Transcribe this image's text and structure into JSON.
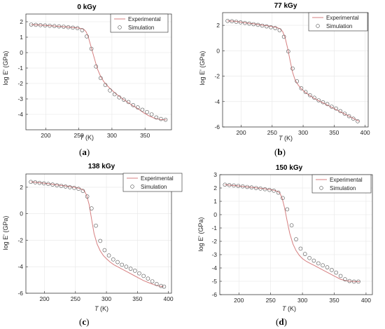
{
  "colors": {
    "experimental": "#d67f80",
    "simulation": "#555555",
    "grid": "#e6e6e6",
    "axis": "#262626"
  },
  "chart_data": [
    {
      "type": "line",
      "title": "0 kGy",
      "caption": {
        "open": "(",
        "letter": "a",
        "close": ")"
      },
      "xlabel": {
        "var": "T",
        "unit": " (K)"
      },
      "ylabel": "log E' (GPa)",
      "xlim": [
        170,
        390
      ],
      "ylim": [
        -5,
        2.5
      ],
      "xticks": [
        200,
        250,
        300,
        350
      ],
      "yticks": [
        -4,
        -3,
        -2,
        -1,
        0,
        1,
        2
      ],
      "grid": true,
      "legend": {
        "position": "top-right",
        "entries": [
          "Experimental",
          "Simulation"
        ]
      },
      "series": [
        {
          "name": "Experimental",
          "style": "line",
          "x": [
            178,
            190,
            200,
            210,
            220,
            230,
            240,
            248,
            254,
            258,
            261,
            264,
            267,
            270,
            274,
            278,
            283,
            288,
            293,
            298,
            303,
            310,
            318,
            325,
            332,
            340,
            348,
            356,
            364,
            372,
            378,
            382
          ],
          "y": [
            1.82,
            1.79,
            1.76,
            1.73,
            1.7,
            1.67,
            1.63,
            1.6,
            1.56,
            1.49,
            1.35,
            1.05,
            0.6,
            0.15,
            -0.45,
            -1.05,
            -1.55,
            -1.9,
            -2.15,
            -2.35,
            -2.55,
            -2.8,
            -3.05,
            -3.25,
            -3.45,
            -3.65,
            -3.9,
            -4.1,
            -4.25,
            -4.33,
            -4.35,
            -4.35
          ]
        },
        {
          "name": "Simulation",
          "style": "markers",
          "x": [
            178,
            185,
            192,
            199,
            206,
            213,
            220,
            227,
            234,
            241,
            248,
            255,
            262,
            269,
            276,
            283,
            290,
            297,
            304,
            311,
            318,
            325,
            332,
            339,
            346,
            353,
            360,
            367,
            374,
            381
          ],
          "y": [
            1.82,
            1.8,
            1.78,
            1.76,
            1.74,
            1.72,
            1.7,
            1.68,
            1.65,
            1.62,
            1.58,
            1.45,
            1.05,
            0.25,
            -0.9,
            -1.65,
            -2.1,
            -2.45,
            -2.7,
            -2.9,
            -3.05,
            -3.2,
            -3.4,
            -3.55,
            -3.7,
            -3.85,
            -4.0,
            -4.2,
            -4.3,
            -4.35
          ]
        }
      ]
    },
    {
      "type": "line",
      "title": "77 kGy",
      "caption": {
        "open": "(",
        "letter": "b",
        "close": ")"
      },
      "xlabel": {
        "var": "T",
        "unit": " (K)"
      },
      "ylabel": "log E' (GPa)",
      "xlim": [
        170,
        405
      ],
      "ylim": [
        -6,
        3
      ],
      "xticks": [
        200,
        250,
        300,
        350,
        400
      ],
      "yticks": [
        -6,
        -4,
        -2,
        0,
        2
      ],
      "grid": true,
      "legend": {
        "position": "top-right",
        "entries": [
          "Experimental",
          "Simulation"
        ]
      },
      "series": [
        {
          "name": "Experimental",
          "style": "line",
          "x": [
            178,
            190,
            200,
            210,
            220,
            230,
            240,
            250,
            258,
            263,
            267,
            271,
            275,
            279,
            283,
            287,
            292,
            297,
            303,
            310,
            318,
            326,
            334,
            342,
            350,
            358,
            366,
            374,
            382,
            390
          ],
          "y": [
            2.35,
            2.32,
            2.25,
            2.18,
            2.12,
            2.05,
            1.98,
            1.9,
            1.82,
            1.72,
            1.5,
            1.0,
            0.2,
            -0.8,
            -1.7,
            -2.3,
            -2.7,
            -3.0,
            -3.25,
            -3.5,
            -3.75,
            -3.95,
            -4.15,
            -4.35,
            -4.55,
            -4.75,
            -4.95,
            -5.15,
            -5.35,
            -5.55
          ]
        },
        {
          "name": "Simulation",
          "style": "markers",
          "x": [
            178,
            185,
            192,
            199,
            206,
            213,
            220,
            227,
            234,
            241,
            248,
            255,
            262,
            269,
            276,
            283,
            290,
            297,
            304,
            311,
            318,
            325,
            332,
            339,
            346,
            353,
            360,
            367,
            374,
            381,
            388
          ],
          "y": [
            2.35,
            2.32,
            2.28,
            2.24,
            2.19,
            2.14,
            2.09,
            2.04,
            1.98,
            1.92,
            1.85,
            1.78,
            1.62,
            1.1,
            -0.05,
            -1.4,
            -2.4,
            -2.95,
            -3.25,
            -3.5,
            -3.7,
            -3.9,
            -4.05,
            -4.2,
            -4.4,
            -4.55,
            -4.75,
            -4.95,
            -5.15,
            -5.35,
            -5.55
          ]
        }
      ]
    },
    {
      "type": "line",
      "title": "138 kGy",
      "caption": {
        "open": "(",
        "letter": "c",
        "close": ")"
      },
      "xlabel": {
        "var": "T",
        "unit": " (K)"
      },
      "ylabel": "log E' (GPa)",
      "xlim": [
        170,
        405
      ],
      "ylim": [
        -6,
        3
      ],
      "xticks": [
        200,
        250,
        300,
        350,
        400
      ],
      "yticks": [
        -6,
        -4,
        -2,
        0,
        2
      ],
      "grid": true,
      "legend": {
        "position": "top-right",
        "entries": [
          "Experimental",
          "Simulation"
        ]
      },
      "series": [
        {
          "name": "Experimental",
          "style": "line",
          "x": [
            178,
            190,
            200,
            210,
            220,
            230,
            240,
            250,
            258,
            264,
            268,
            272,
            276,
            280,
            285,
            290,
            295,
            300,
            306,
            312,
            320,
            328,
            336,
            344,
            352,
            360,
            368,
            376,
            384,
            392
          ],
          "y": [
            2.4,
            2.35,
            2.3,
            2.25,
            2.18,
            2.12,
            2.05,
            1.98,
            1.9,
            1.75,
            1.4,
            0.7,
            -0.4,
            -1.5,
            -2.3,
            -2.8,
            -3.15,
            -3.4,
            -3.65,
            -3.85,
            -4.05,
            -4.25,
            -4.45,
            -4.65,
            -4.85,
            -5.05,
            -5.2,
            -5.35,
            -5.45,
            -5.5
          ]
        },
        {
          "name": "Simulation",
          "style": "markers",
          "x": [
            178,
            185,
            192,
            199,
            206,
            213,
            220,
            227,
            234,
            241,
            248,
            255,
            262,
            269,
            276,
            283,
            290,
            297,
            304,
            311,
            318,
            325,
            332,
            339,
            346,
            353,
            360,
            367,
            374,
            381,
            388,
            393
          ],
          "y": [
            2.4,
            2.37,
            2.33,
            2.29,
            2.25,
            2.2,
            2.15,
            2.1,
            2.05,
            2.0,
            1.95,
            1.88,
            1.72,
            1.3,
            0.4,
            -0.9,
            -2.05,
            -2.75,
            -3.15,
            -3.45,
            -3.65,
            -3.85,
            -4.0,
            -4.15,
            -4.3,
            -4.5,
            -4.7,
            -4.9,
            -5.1,
            -5.3,
            -5.45,
            -5.5
          ]
        }
      ]
    },
    {
      "type": "line",
      "title": "150 kGy",
      "caption": {
        "open": "(",
        "letter": "d",
        "close": ")"
      },
      "xlabel": {
        "var": "T",
        "unit": " (K)"
      },
      "ylabel": "log E' (GPa)",
      "xlim": [
        170,
        410
      ],
      "ylim": [
        -6,
        3
      ],
      "xticks": [
        200,
        250,
        300,
        350,
        400
      ],
      "yticks": [
        -6,
        -5,
        -4,
        -3,
        -2,
        -1,
        0,
        1,
        2,
        3
      ],
      "grid": true,
      "legend": {
        "position": "top-right",
        "entries": [
          "Experimental",
          "Simulation"
        ]
      },
      "series": [
        {
          "name": "Experimental",
          "style": "line",
          "x": [
            178,
            190,
            200,
            210,
            220,
            230,
            240,
            250,
            258,
            264,
            268,
            272,
            276,
            280,
            285,
            290,
            295,
            300,
            306,
            312,
            320,
            328,
            336,
            344,
            352,
            360,
            368,
            376,
            384,
            390
          ],
          "y": [
            2.25,
            2.2,
            2.15,
            2.1,
            2.05,
            2.0,
            1.95,
            1.88,
            1.8,
            1.65,
            1.25,
            0.5,
            -0.5,
            -1.4,
            -2.2,
            -2.7,
            -3.05,
            -3.3,
            -3.5,
            -3.65,
            -3.85,
            -4.05,
            -4.25,
            -4.45,
            -4.65,
            -4.85,
            -4.95,
            -5.0,
            -5.02,
            -5.02
          ]
        },
        {
          "name": "Simulation",
          "style": "markers",
          "x": [
            178,
            185,
            192,
            199,
            206,
            213,
            220,
            227,
            234,
            241,
            248,
            255,
            262,
            269,
            276,
            283,
            290,
            297,
            304,
            311,
            318,
            325,
            332,
            339,
            346,
            353,
            360,
            367,
            374,
            381,
            388
          ],
          "y": [
            2.25,
            2.22,
            2.19,
            2.16,
            2.12,
            2.08,
            2.04,
            2.0,
            1.96,
            1.91,
            1.86,
            1.8,
            1.65,
            1.25,
            0.4,
            -0.8,
            -1.85,
            -2.55,
            -2.95,
            -3.25,
            -3.45,
            -3.65,
            -3.8,
            -3.95,
            -4.15,
            -4.35,
            -4.6,
            -4.85,
            -4.98,
            -5.02,
            -5.02
          ]
        }
      ]
    }
  ]
}
